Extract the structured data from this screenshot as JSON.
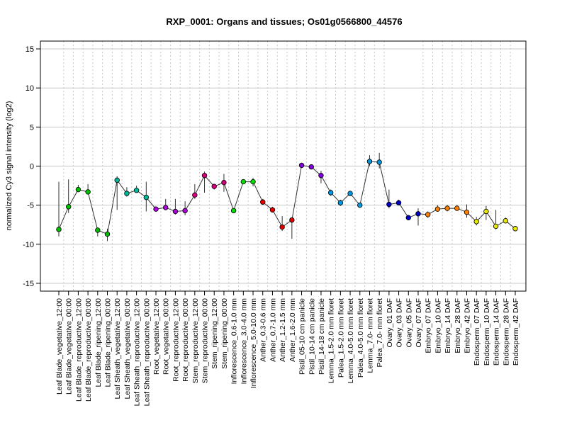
{
  "chart_data": {
    "type": "line",
    "title": "RXP_0001: Organs and tissues; Os01g0566800_44576",
    "xlabel": "",
    "ylabel": "normalized Cy3 signal intensity (log2)",
    "ylim": [
      -16,
      16
    ],
    "yticks": [
      -15,
      -10,
      -5,
      0,
      5,
      10,
      15
    ],
    "grid": true,
    "categories": [
      "Leaf Blade_vegetative_12:00",
      "Leaf Blade_vegetative_00:00",
      "Leaf Blade_reproductive_12:00",
      "Leaf Blade_reproductive_00:00",
      "Leaf Blade_ripening_12:00",
      "Leaf Blade_ripening_00:00",
      "Leaf Sheath_vegetative_12:00",
      "Leaf Sheath_vegetative_00:00",
      "Leaf Sheath_reproductive_12:00",
      "Leaf Sheath_reproductive_00:00",
      "Root_vegetative_12:00",
      "Root_vegetative_00:00",
      "Root_reproductive_12:00",
      "Root_reproductive_00:00",
      "Stem_reproductive_12:00",
      "Stem_reproductive_00:00",
      "Stem_ripening_12:00",
      "Stem_ripening_00:00",
      "Inflorescence_0.6-1.0 mm",
      "Inflorescence_3.0-4.0 mm",
      "Inflorescence_5.0-10.0 mm",
      "Anther_0.3-0.6 mm",
      "Anther_0.7-1.0 mm",
      "Anther_1.2-1.5 mm",
      "Anther_1.6-2.0 mm",
      "Pistil_05-10 cm panicle",
      "Pistil_10-14 cm panicle",
      "Pistil_14-18 cm panicle",
      "Lemma_1.5-2.0 mm floret",
      "Palea_1.5-2.0 mm floret",
      "Lemma_4.0-5.0 mm floret",
      "Palea_4.0-5.0 mm floret",
      "Lemma_7.0- mm floret",
      "Palea_7.0- mm floret",
      "Ovary_01 DAF",
      "Ovary_03 DAF",
      "Ovary_05 DAF",
      "Ovary_07 DAF",
      "Embryo_07 DAF",
      "Embryo_10 DAF",
      "Embryo_14 DAF",
      "Embryo_28 DAF",
      "Embryo_42 DAF",
      "Endosperm_07 DAF",
      "Endosperm_10 DAF",
      "Endosperm_14 DAF",
      "Endosperm_28 DAF",
      "Endosperm_42 DAF"
    ],
    "series": [
      {
        "values": [
          -8.1,
          -5.2,
          -3.0,
          -3.3,
          -8.2,
          -8.7,
          -1.8,
          -3.5,
          -3.1,
          -4.0,
          -5.5,
          -5.3,
          -5.8,
          -5.7,
          -3.7,
          -1.2,
          -2.6,
          -2.1,
          -5.7,
          -2.0,
          -2.0,
          -4.6,
          -5.6,
          -7.8,
          -6.9,
          0.1,
          -0.1,
          -1.2,
          -3.4,
          -4.7,
          -3.5,
          -5.0,
          0.6,
          0.5,
          -4.9,
          -4.7,
          -6.6,
          -6.1,
          -6.2,
          -5.5,
          -5.4,
          -5.4,
          -5.9,
          -7.1,
          -5.8,
          -7.7,
          -7.0,
          -8.0
        ],
        "err_low": [
          -9.0,
          -6.0,
          -3.3,
          -3.6,
          -9.0,
          -9.6,
          -5.6,
          -3.9,
          -3.4,
          -5.8,
          -5.7,
          -5.6,
          -6.2,
          -6.3,
          -4.2,
          -3.4,
          -3.0,
          -3.3,
          -6.0,
          -2.3,
          -2.6,
          -4.9,
          -5.8,
          -8.3,
          -9.3,
          -0.2,
          -0.4,
          -2.2,
          -3.8,
          -5.1,
          -3.8,
          -5.3,
          0.0,
          -0.3,
          -5.4,
          -5.0,
          -6.9,
          -7.6,
          -6.6,
          -5.8,
          -5.8,
          -5.7,
          -6.6,
          -7.6,
          -6.9,
          -8.1,
          -7.3,
          -8.3
        ],
        "err_high": [
          -2.0,
          -1.7,
          -2.4,
          -2.3,
          -8.0,
          -8.0,
          -1.3,
          -2.7,
          -2.5,
          -2.0,
          -5.3,
          -4.2,
          -4.2,
          -4.5,
          -2.3,
          -0.7,
          -2.3,
          -1.0,
          -5.4,
          -1.7,
          -1.5,
          -4.2,
          -5.2,
          -6.4,
          -6.6,
          0.4,
          0.2,
          -0.6,
          -3.0,
          -4.3,
          -3.2,
          -4.7,
          1.4,
          1.7,
          -3.0,
          -4.3,
          -6.3,
          -5.4,
          -5.8,
          -5.0,
          -5.0,
          -5.0,
          -4.9,
          -6.5,
          -5.1,
          -5.6,
          -6.6,
          -7.7
        ],
        "colors": [
          "#00c000",
          "#00c000",
          "#00c000",
          "#00c000",
          "#00c000",
          "#00c000",
          "#00b89a",
          "#00b89a",
          "#00b89a",
          "#00b89a",
          "#b000e0",
          "#b000e0",
          "#b000e0",
          "#b000e0",
          "#d0007a",
          "#d0007a",
          "#d0007a",
          "#d0007a",
          "#00e000",
          "#00e000",
          "#00e000",
          "#e00000",
          "#e00000",
          "#e00000",
          "#e00000",
          "#8000e0",
          "#8000e0",
          "#8000e0",
          "#0098e0",
          "#0098e0",
          "#0098e0",
          "#0098e0",
          "#0098e0",
          "#0098e0",
          "#0000c0",
          "#0000c0",
          "#0000c0",
          "#0000c0",
          "#ff8000",
          "#ff8000",
          "#ff8000",
          "#ff8000",
          "#ff8000",
          "#e8e800",
          "#e8e800",
          "#e8e800",
          "#e8e800",
          "#e8e800"
        ]
      }
    ]
  }
}
